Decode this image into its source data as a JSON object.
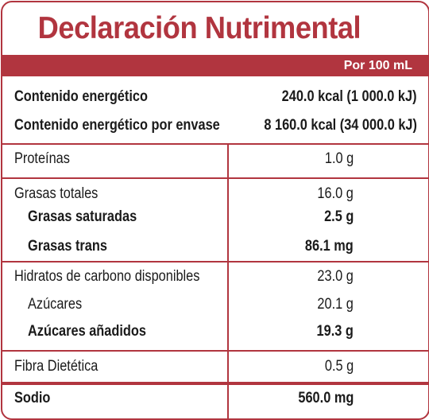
{
  "title": "Declaración Nutrimental",
  "per_label": "Por 100 mL",
  "energy": {
    "label": "Contenido energético",
    "value": "240.0 kcal (1 000.0 kJ)",
    "container_label": "Contenido energético por envase",
    "container_value": "8 160.0 kcal (34 000.0 kJ)"
  },
  "protein": {
    "label": "Proteínas",
    "value": "1.0 g"
  },
  "fat": {
    "label": "Grasas totales",
    "value": "16.0 g",
    "saturated_label": "Grasas saturadas",
    "saturated_value": "2.5 g",
    "trans_label": "Grasas trans",
    "trans_value": "86.1 mg"
  },
  "carbs": {
    "label": "Hidratos de carbono disponibles",
    "value": "23.0 g",
    "sugars_label": "Azúcares",
    "sugars_value": "20.1 g",
    "added_sugars_label": "Azúcares añadidos",
    "added_sugars_value": "19.3 g"
  },
  "fiber": {
    "label": "Fibra Dietética",
    "value": "0.5 g"
  },
  "sodium": {
    "label": "Sodio",
    "value": "560.0 mg"
  },
  "colors": {
    "accent": "#b1353f",
    "text": "#1a1a1a"
  }
}
